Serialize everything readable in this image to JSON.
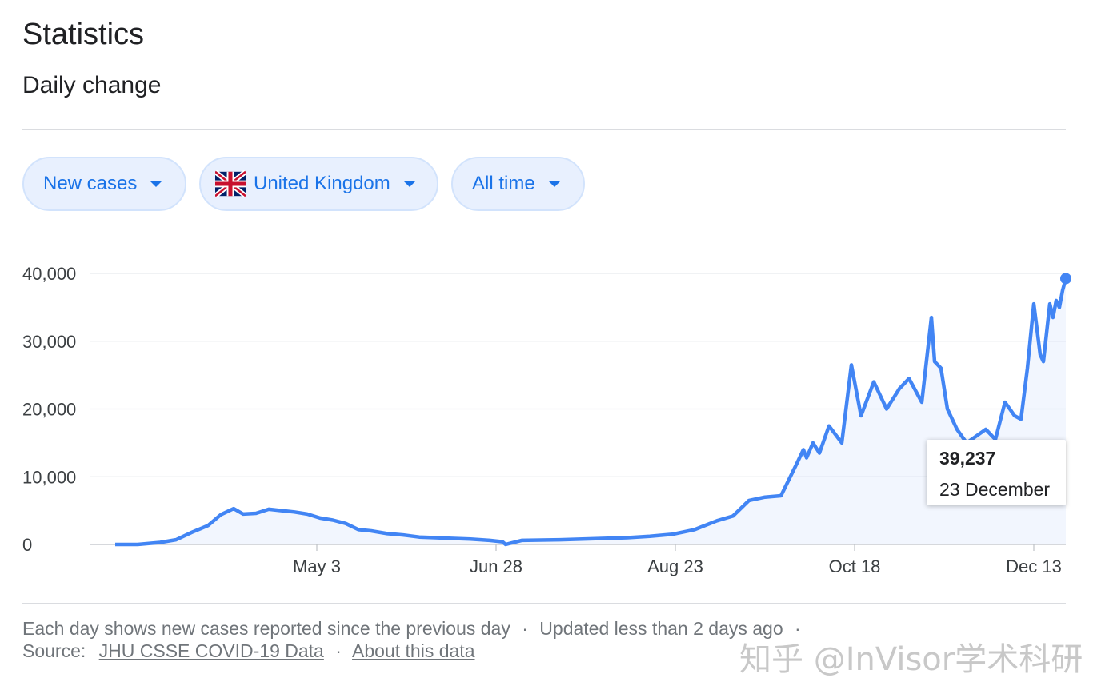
{
  "header": {
    "title": "Statistics",
    "subtitle": "Daily change"
  },
  "filters": {
    "metric": "New cases",
    "country": "United Kingdom",
    "range": "All time"
  },
  "tooltip": {
    "value": "39,237",
    "date": "23 December"
  },
  "footer": {
    "note": "Each day shows new cases reported since the previous day",
    "updated": "Updated less than 2 days ago",
    "source_label": "Source:",
    "source_link": "JHU CSSE COVID-19 Data",
    "about_link": "About this data",
    "sep": "·"
  },
  "watermark": "知乎 @InVisor学术科研",
  "colors": {
    "line": "#4285f4",
    "accent": "#1a73e8",
    "chip_bg": "#e8f0fe",
    "grid": "#e8eaed"
  },
  "chart_data": {
    "type": "line",
    "title": "Daily change",
    "xlabel": "",
    "ylabel": "",
    "ylim": [
      0,
      40000
    ],
    "yticks": [
      0,
      10000,
      20000,
      30000,
      40000
    ],
    "ytick_labels": [
      "0",
      "10,000",
      "20,000",
      "30,000",
      "40,000"
    ],
    "xticks": [
      "2020-05-03",
      "2020-06-28",
      "2020-08-23",
      "2020-10-18",
      "2020-12-13"
    ],
    "xtick_labels": [
      "May 3",
      "Jun 28",
      "Aug 23",
      "Oct 18",
      "Dec 13"
    ],
    "grid": true,
    "series": [
      {
        "x": [
          "2020-03-01",
          "2020-03-08",
          "2020-03-15",
          "2020-03-20",
          "2020-03-25",
          "2020-03-30",
          "2020-04-03",
          "2020-04-07",
          "2020-04-10",
          "2020-04-14",
          "2020-04-18",
          "2020-04-22",
          "2020-04-26",
          "2020-04-30",
          "2020-05-04",
          "2020-05-08",
          "2020-05-12",
          "2020-05-16",
          "2020-05-20",
          "2020-05-25",
          "2020-05-30",
          "2020-06-04",
          "2020-06-09",
          "2020-06-14",
          "2020-06-20",
          "2020-06-26",
          "2020-06-30",
          "2020-07-01",
          "2020-07-06",
          "2020-07-12",
          "2020-07-18",
          "2020-07-25",
          "2020-08-01",
          "2020-08-08",
          "2020-08-15",
          "2020-08-22",
          "2020-08-29",
          "2020-09-05",
          "2020-09-10",
          "2020-09-15",
          "2020-09-20",
          "2020-09-25",
          "2020-09-30",
          "2020-10-02",
          "2020-10-03",
          "2020-10-05",
          "2020-10-07",
          "2020-10-10",
          "2020-10-14",
          "2020-10-17",
          "2020-10-20",
          "2020-10-24",
          "2020-10-28",
          "2020-11-01",
          "2020-11-04",
          "2020-11-08",
          "2020-11-11",
          "2020-11-12",
          "2020-11-14",
          "2020-11-16",
          "2020-11-19",
          "2020-11-22",
          "2020-11-25",
          "2020-11-28",
          "2020-12-01",
          "2020-12-04",
          "2020-12-07",
          "2020-12-09",
          "2020-12-11",
          "2020-12-13",
          "2020-12-15",
          "2020-12-16",
          "2020-12-18",
          "2020-12-19",
          "2020-12-20",
          "2020-12-21",
          "2020-12-22",
          "2020-12-23"
        ],
        "y": [
          0,
          0,
          300,
          700,
          1800,
          2800,
          4400,
          5300,
          4500,
          4600,
          5200,
          5000,
          4800,
          4500,
          3900,
          3600,
          3100,
          2200,
          2000,
          1600,
          1400,
          1100,
          1000,
          900,
          800,
          600,
          400,
          0,
          600,
          650,
          700,
          800,
          900,
          1000,
          1200,
          1500,
          2200,
          3500,
          4200,
          6500,
          7000,
          7200,
          12000,
          14000,
          12800,
          15000,
          13500,
          17500,
          15000,
          26500,
          19000,
          24000,
          20000,
          23000,
          24500,
          21000,
          33500,
          27000,
          26000,
          20000,
          17000,
          15000,
          16000,
          17000,
          15500,
          21000,
          19000,
          18500,
          26000,
          35500,
          28000,
          27000,
          35500,
          33500,
          36000,
          35000,
          37500,
          39237
        ]
      }
    ]
  }
}
